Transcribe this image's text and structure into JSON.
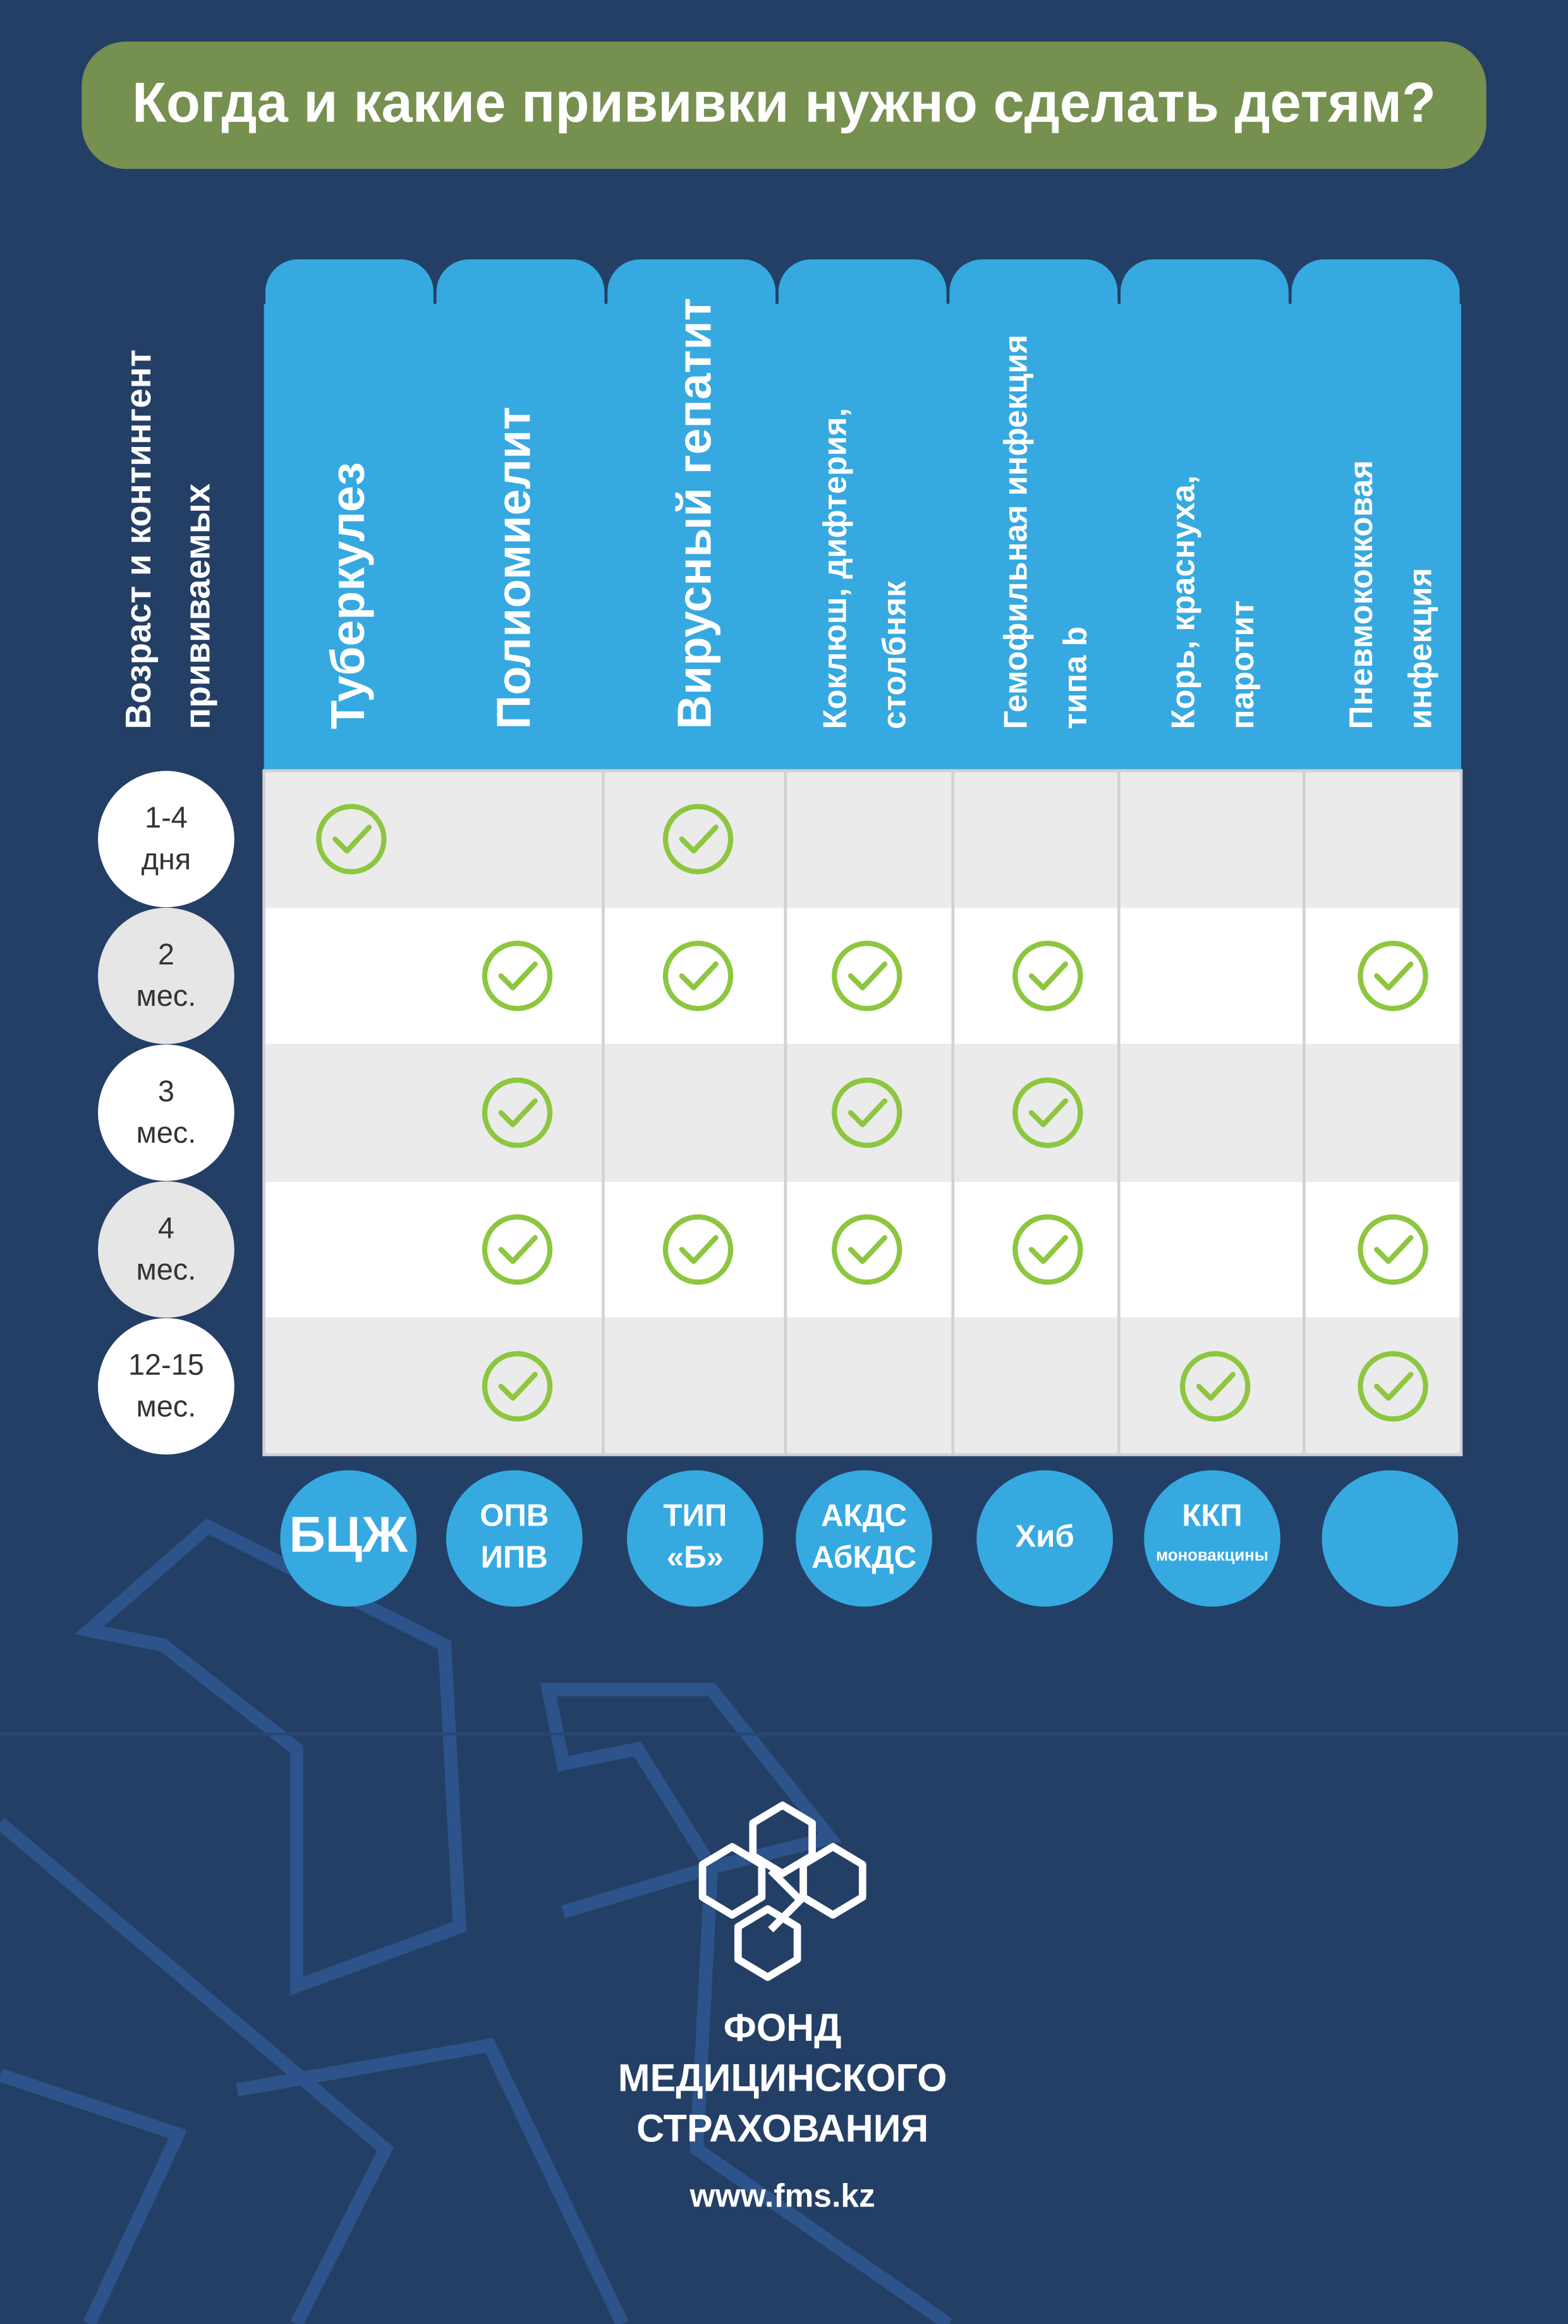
{
  "title": "Когда и какие прививки нужно сделать детям?",
  "row_header": [
    "Возраст и контингент",
    "прививаемых"
  ],
  "columns": [
    {
      "label": [
        "Туберкулез"
      ],
      "abbr": [
        "БЦЖ"
      ]
    },
    {
      "label": [
        "Полиомиелит"
      ],
      "abbr": [
        "ОПВ",
        "ИПВ"
      ]
    },
    {
      "label": [
        "Вирусный гепатит"
      ],
      "abbr": [
        "ТИП",
        "«Б»"
      ]
    },
    {
      "label": [
        "Коклюш, дифтерия,",
        "столбняк"
      ],
      "abbr": [
        "АКДС",
        "АбКДС"
      ]
    },
    {
      "label": [
        "Гемофильная инфекция",
        "типа b"
      ],
      "abbr": [
        "Хиб"
      ]
    },
    {
      "label": [
        "Корь, краснуха,",
        "паротит"
      ],
      "abbr": [
        "ККП",
        "моновакцины"
      ]
    },
    {
      "label": [
        "Пневмококковая",
        "инфекция"
      ],
      "abbr": []
    }
  ],
  "rows": [
    {
      "age": [
        "1-4",
        "дня"
      ],
      "checks": [
        true,
        false,
        true,
        false,
        false,
        false,
        false
      ]
    },
    {
      "age": [
        "2",
        "мес."
      ],
      "checks": [
        false,
        true,
        true,
        true,
        true,
        false,
        true
      ]
    },
    {
      "age": [
        "3",
        "мес."
      ],
      "checks": [
        false,
        true,
        false,
        true,
        true,
        false,
        false
      ]
    },
    {
      "age": [
        "4",
        "мес."
      ],
      "checks": [
        false,
        true,
        true,
        true,
        true,
        false,
        true
      ]
    },
    {
      "age": [
        "12-15",
        "мес."
      ],
      "checks": [
        false,
        true,
        false,
        false,
        false,
        true,
        true
      ]
    }
  ],
  "footer": {
    "org": [
      "ФОНД",
      "МЕДИЦИНСКОГО",
      "СТРАХОВАНИЯ"
    ],
    "url": "www.fms.kz"
  }
}
